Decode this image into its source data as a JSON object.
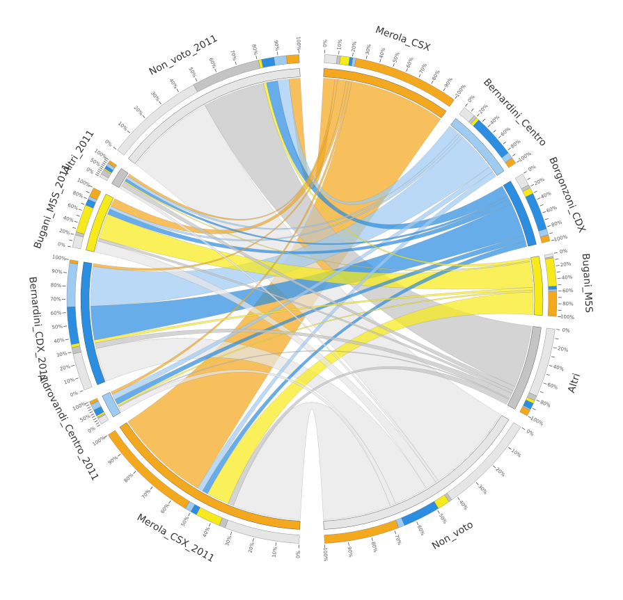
{
  "chart_data": {
    "type": "chord",
    "targets": [
      {
        "name": "Merola_CSX",
        "color": "#f4a81d"
      },
      {
        "name": "Bernardini_Centro",
        "color": "#9ecbf2"
      },
      {
        "name": "Borgonzoni_CDX",
        "color": "#2b8ee0"
      },
      {
        "name": "Bugani_M5S",
        "color": "#f7ea1a"
      },
      {
        "name": "Altri",
        "color": "#c4c4c4"
      },
      {
        "name": "Non_voto",
        "color": "#e6e6e6"
      }
    ],
    "sources": [
      {
        "name": "Merola_CSX_2011",
        "color": "#f4a81d"
      },
      {
        "name": "Aldrovandi_Centro_2011",
        "color": "#9ecbf2"
      },
      {
        "name": "Bernardini_CDX_2011",
        "color": "#2b8ee0"
      },
      {
        "name": "Bugani_M5S_2011",
        "color": "#f7ea1a"
      },
      {
        "name": "Altri_2011",
        "color": "#c4c4c4"
      },
      {
        "name": "Non_voto_2011",
        "color": "#e6e6e6"
      }
    ],
    "flows": [
      [
        17,
        1,
        1,
        4,
        1,
        12
      ],
      [
        0.5,
        1,
        1,
        0.3,
        0.2,
        1
      ],
      [
        0.5,
        7,
        6,
        0.5,
        1,
        6
      ],
      [
        1.5,
        0.5,
        1,
        4.5,
        0.5,
        2
      ],
      [
        0.5,
        0.5,
        0.5,
        0.2,
        0.8,
        0.5
      ],
      [
        2,
        2,
        2,
        0.5,
        11,
        16
      ]
    ],
    "percent_ticks": [
      {
        "value": 0,
        "label": "0%"
      },
      {
        "value": 10,
        "label": "10%"
      },
      {
        "value": 20,
        "label": "20%"
      },
      {
        "value": 30,
        "label": "30%"
      },
      {
        "value": 40,
        "label": "40%"
      },
      {
        "value": 50,
        "label": "50%"
      },
      {
        "value": 60,
        "label": "60%"
      },
      {
        "value": 70,
        "label": "70%"
      },
      {
        "value": 80,
        "label": "80%"
      },
      {
        "value": 90,
        "label": "90%"
      },
      {
        "value": 100,
        "label": "100%"
      }
    ]
  }
}
